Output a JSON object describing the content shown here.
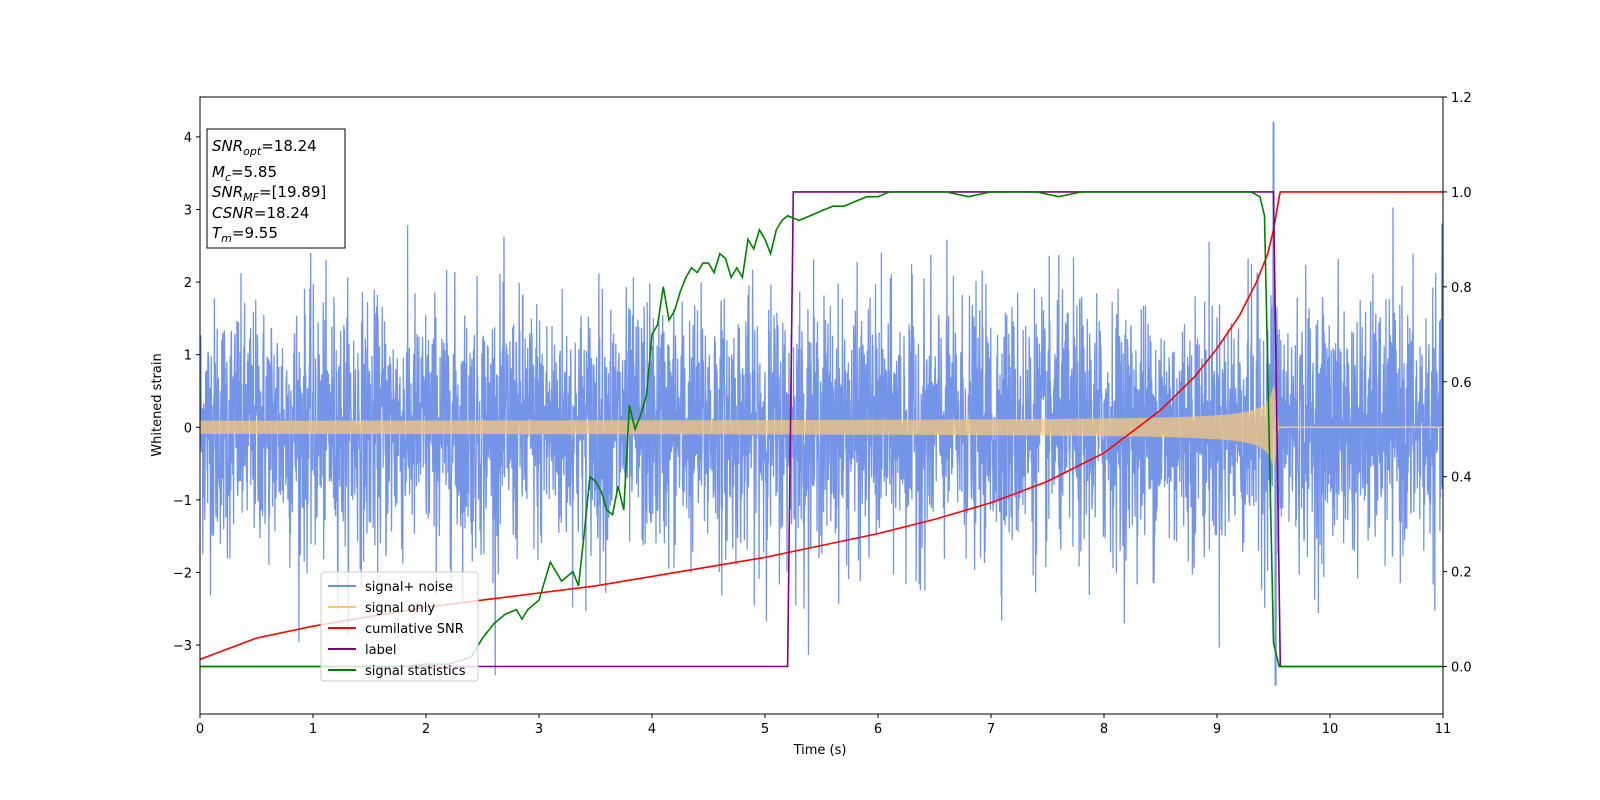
{
  "chart_data": {
    "type": "line",
    "xlabel": "Time (s)",
    "ylabel": "Whitened strain",
    "xlim": [
      0,
      11
    ],
    "ylim": [
      -3.95,
      4.55
    ],
    "y2lim": [
      -0.1,
      1.2
    ],
    "x_ticks": [
      "0",
      "1",
      "2",
      "3",
      "4",
      "5",
      "6",
      "7",
      "8",
      "9",
      "10",
      "11"
    ],
    "y_ticks": [
      "−3",
      "−2",
      "−1",
      "0",
      "1",
      "2",
      "3",
      "4"
    ],
    "y2_ticks": [
      "0.0",
      "0.2",
      "0.4",
      "0.6",
      "0.8",
      "1.0",
      "1.2"
    ],
    "grid": false,
    "legend_position": "lower-left",
    "info_box": {
      "lines": [
        {
          "main": "SNR",
          "sub": "opt",
          "value": "=18.24"
        },
        {
          "main": "M",
          "sub": "c",
          "value": "=5.85"
        },
        {
          "main": "SNR",
          "sub": "MF",
          "value": "=[19.89]"
        },
        {
          "main": "CSNR",
          "sub": "",
          "value": "=18.24"
        },
        {
          "main": "T",
          "sub": "m",
          "value": "=9.55"
        }
      ]
    },
    "series": [
      {
        "name": "signal+ noise",
        "color": "#6d8ee6",
        "axis": "left",
        "kind": "noise",
        "description_values": {
          "std": 1.0,
          "x_end": 11
        }
      },
      {
        "name": "signal only",
        "color": "#f5c77e",
        "axis": "left",
        "kind": "chirp",
        "description_values": {
          "start_amp": 0.08,
          "peak_amp": 0.95,
          "merger_time": 9.55
        }
      },
      {
        "name": "cumilative SNR",
        "color": "#ff0000",
        "axis": "right",
        "x": [
          0,
          0.5,
          1,
          1.5,
          2,
          2.5,
          3,
          3.5,
          4,
          4.5,
          5,
          5.5,
          6,
          6.5,
          7,
          7.5,
          8,
          8.5,
          8.8,
          9.0,
          9.2,
          9.35,
          9.45,
          9.5,
          9.55,
          9.56,
          11
        ],
        "values": [
          0.015,
          0.06,
          0.085,
          0.105,
          0.125,
          0.14,
          0.155,
          0.17,
          0.19,
          0.21,
          0.23,
          0.255,
          0.28,
          0.31,
          0.345,
          0.39,
          0.45,
          0.54,
          0.61,
          0.67,
          0.74,
          0.81,
          0.87,
          0.92,
          0.99,
          1.0,
          1.0
        ]
      },
      {
        "name": "label",
        "color": "#800080",
        "axis": "right",
        "x": [
          0,
          5.2,
          5.25,
          9.5,
          9.56,
          11
        ],
        "values": [
          0,
          0,
          1,
          1,
          0,
          0
        ]
      },
      {
        "name": "signal statistics",
        "color": "#008000",
        "axis": "right",
        "x": [
          0,
          1.0,
          1.8,
          2.0,
          2.2,
          2.4,
          2.5,
          2.6,
          2.7,
          2.8,
          2.85,
          2.9,
          3.0,
          3.1,
          3.2,
          3.3,
          3.35,
          3.4,
          3.45,
          3.5,
          3.55,
          3.6,
          3.65,
          3.7,
          3.75,
          3.8,
          3.85,
          3.9,
          3.95,
          4.0,
          4.05,
          4.1,
          4.15,
          4.2,
          4.25,
          4.3,
          4.35,
          4.4,
          4.45,
          4.5,
          4.55,
          4.6,
          4.65,
          4.7,
          4.75,
          4.8,
          4.85,
          4.9,
          4.95,
          5.0,
          5.05,
          5.1,
          5.15,
          5.2,
          5.3,
          5.4,
          5.5,
          5.6,
          5.7,
          5.8,
          5.9,
          6.0,
          6.1,
          6.2,
          6.4,
          6.6,
          6.8,
          7.0,
          7.2,
          7.4,
          7.6,
          7.8,
          8.0,
          8.5,
          9.0,
          9.3,
          9.38,
          9.42,
          9.46,
          9.5,
          9.55,
          9.6,
          11
        ],
        "values": [
          0.0,
          0.0,
          0.0,
          0.005,
          0.005,
          0.02,
          0.06,
          0.09,
          0.11,
          0.12,
          0.1,
          0.12,
          0.14,
          0.22,
          0.18,
          0.2,
          0.17,
          0.28,
          0.4,
          0.39,
          0.37,
          0.33,
          0.32,
          0.38,
          0.33,
          0.55,
          0.5,
          0.53,
          0.57,
          0.7,
          0.72,
          0.8,
          0.73,
          0.75,
          0.79,
          0.82,
          0.84,
          0.83,
          0.85,
          0.85,
          0.83,
          0.87,
          0.86,
          0.82,
          0.84,
          0.82,
          0.9,
          0.88,
          0.92,
          0.9,
          0.87,
          0.92,
          0.94,
          0.95,
          0.94,
          0.95,
          0.96,
          0.97,
          0.97,
          0.98,
          0.99,
          0.99,
          1.0,
          1.0,
          1.0,
          1.0,
          0.99,
          1.0,
          1.0,
          1.0,
          0.99,
          1.0,
          1.0,
          1.0,
          1.0,
          1.0,
          0.99,
          0.95,
          0.5,
          0.05,
          0.0,
          0.0,
          0.0
        ]
      }
    ]
  }
}
